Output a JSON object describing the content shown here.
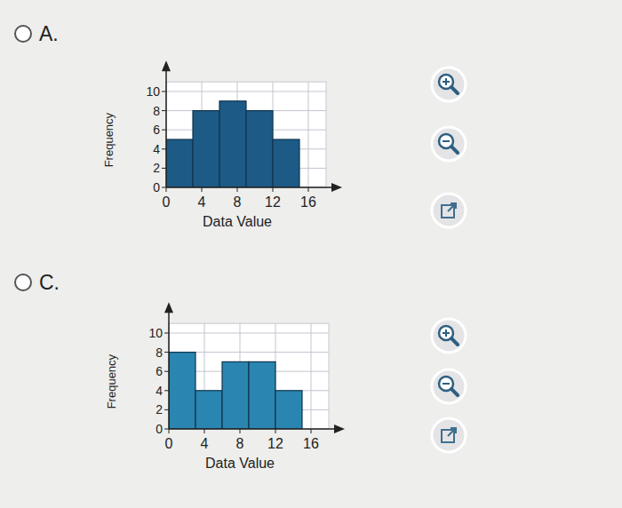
{
  "options": [
    "A.",
    "C."
  ],
  "chart_data": [
    {
      "type": "histogram",
      "xlabel": "Data Value",
      "ylabel": "Frequency",
      "bins": [
        0,
        3,
        6,
        9,
        12,
        15
      ],
      "values": [
        5,
        8,
        9,
        8,
        5
      ],
      "color": "#1d5a86",
      "xlim": [
        0,
        18
      ],
      "xticks": [
        0,
        4,
        8,
        12,
        16
      ],
      "ylim": [
        0,
        11
      ],
      "yticks": [
        0,
        2,
        4,
        6,
        8,
        10
      ],
      "grid": true
    },
    {
      "type": "histogram",
      "xlabel": "Data Value",
      "ylabel": "Frequency",
      "bins": [
        0,
        3,
        6,
        9,
        12,
        15
      ],
      "values": [
        8,
        4,
        7,
        7,
        4
      ],
      "color": "#2a86b0",
      "xlim": [
        0,
        18
      ],
      "xticks": [
        0,
        4,
        8,
        12,
        16
      ],
      "ylim": [
        0,
        11
      ],
      "yticks": [
        0,
        2,
        4,
        6,
        8,
        10
      ],
      "grid": true
    }
  ]
}
